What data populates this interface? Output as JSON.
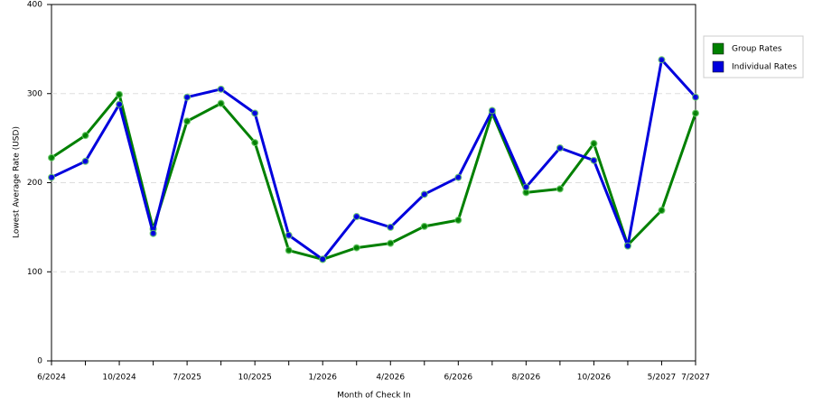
{
  "chart_data": {
    "type": "line",
    "x_label": "Month of Check In",
    "y_label": "Lowest Average Rate (USD)",
    "categories": [
      "6/2024",
      null,
      "10/2024",
      null,
      "7/2025",
      null,
      "10/2025",
      null,
      "1/2026",
      null,
      "4/2026",
      null,
      "6/2026",
      null,
      "8/2026",
      null,
      "10/2026",
      null,
      "5/2027",
      "7/2027"
    ],
    "series": [
      {
        "name": "Group Rates",
        "color": "#008000",
        "values": [
          228,
          253,
          299,
          148,
          269,
          289,
          245,
          124,
          114,
          127,
          132,
          151,
          158,
          278,
          189,
          193,
          244,
          130,
          169,
          278
        ]
      },
      {
        "name": "Individual Rates",
        "color": "#0000dd",
        "values": [
          206,
          224,
          288,
          143,
          296,
          305,
          278,
          141,
          114,
          162,
          150,
          187,
          206,
          281,
          195,
          239,
          225,
          129,
          338,
          296
        ]
      }
    ],
    "ylim": [
      0,
      400
    ],
    "yticks": [
      0,
      100,
      200,
      300,
      400
    ],
    "grid": true,
    "legend": "right"
  }
}
